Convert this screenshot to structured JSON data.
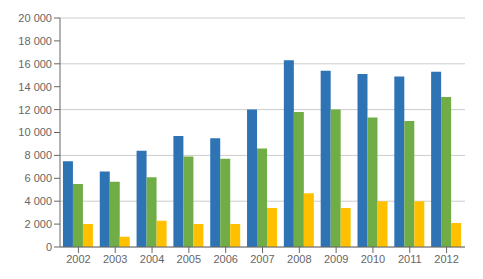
{
  "chart_data": {
    "type": "bar",
    "categories": [
      "2002",
      "2003",
      "2004",
      "2005",
      "2006",
      "2007",
      "2008",
      "2009",
      "2010",
      "2011",
      "2012"
    ],
    "series": [
      {
        "color": "#2E74B5",
        "values": [
          7500,
          6600,
          8400,
          9700,
          9500,
          12000,
          16300,
          15400,
          15100,
          14900,
          15300
        ]
      },
      {
        "color": "#70AD47",
        "values": [
          5500,
          5700,
          6100,
          7900,
          7700,
          8600,
          11800,
          12000,
          11300,
          11000,
          13100
        ]
      },
      {
        "color": "#FFC000",
        "values": [
          2000,
          900,
          2300,
          2000,
          2000,
          3400,
          4700,
          3400,
          4000,
          4000,
          2100
        ]
      }
    ],
    "ylim": [
      0,
      20000
    ],
    "yticks": [
      0,
      {
        "value": 2000,
        "label": "2 000"
      },
      {
        "value": 4000,
        "label": "4 000"
      },
      {
        "value": 6000,
        "label": "6 000"
      },
      {
        "value": 8000,
        "label": "8 000"
      },
      {
        "value": 10000,
        "label": "10 000"
      },
      {
        "value": 12000,
        "label": "12 000"
      },
      {
        "value": 14000,
        "label": "14 000"
      },
      {
        "value": 16000,
        "label": "16 000"
      },
      {
        "value": 18000,
        "label": "18 000"
      },
      {
        "value": 20000,
        "label": "20 000"
      }
    ],
    "grid": true
  }
}
